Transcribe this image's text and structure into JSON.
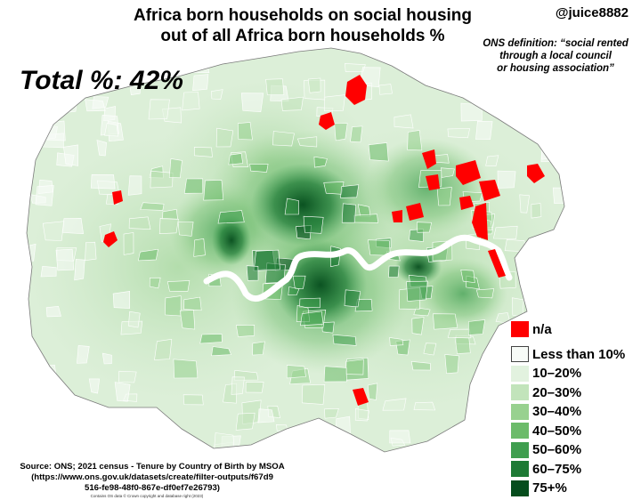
{
  "title_line1": "Africa born households on social housing",
  "title_line2": "out of all Africa born households %",
  "handle": "@juice8882",
  "definition_lines": [
    "ONS definition: “social rented",
    "through a local council",
    "or housing association”"
  ],
  "total_label": "Total %: 42%",
  "legend": [
    {
      "label": "n/a",
      "color": "#ff0000"
    },
    {
      "label": "Less than 10%",
      "color": "#f7fbf7"
    },
    {
      "label": "10–20%",
      "color": "#e2f2df"
    },
    {
      "label": "20–30%",
      "color": "#c2e4bb"
    },
    {
      "label": "30–40%",
      "color": "#98d18f"
    },
    {
      "label": "40–50%",
      "color": "#6cbb6a"
    },
    {
      "label": "50–60%",
      "color": "#3f9e4f"
    },
    {
      "label": "60–75%",
      "color": "#1e7a35"
    },
    {
      "label": "75+%",
      "color": "#064d1d"
    }
  ],
  "source_lines": [
    "Source: ONS; 2021 census  - Tenure by Country of Birth by MSOA",
    "(https://www.ons.gov.uk/datasets/create/filter-outputs/f67d9",
    "516-fe98-48f0-867e-df0ef7e26793)"
  ],
  "copyright": "Contains OS data © Crown copyright and database right (2023)"
}
